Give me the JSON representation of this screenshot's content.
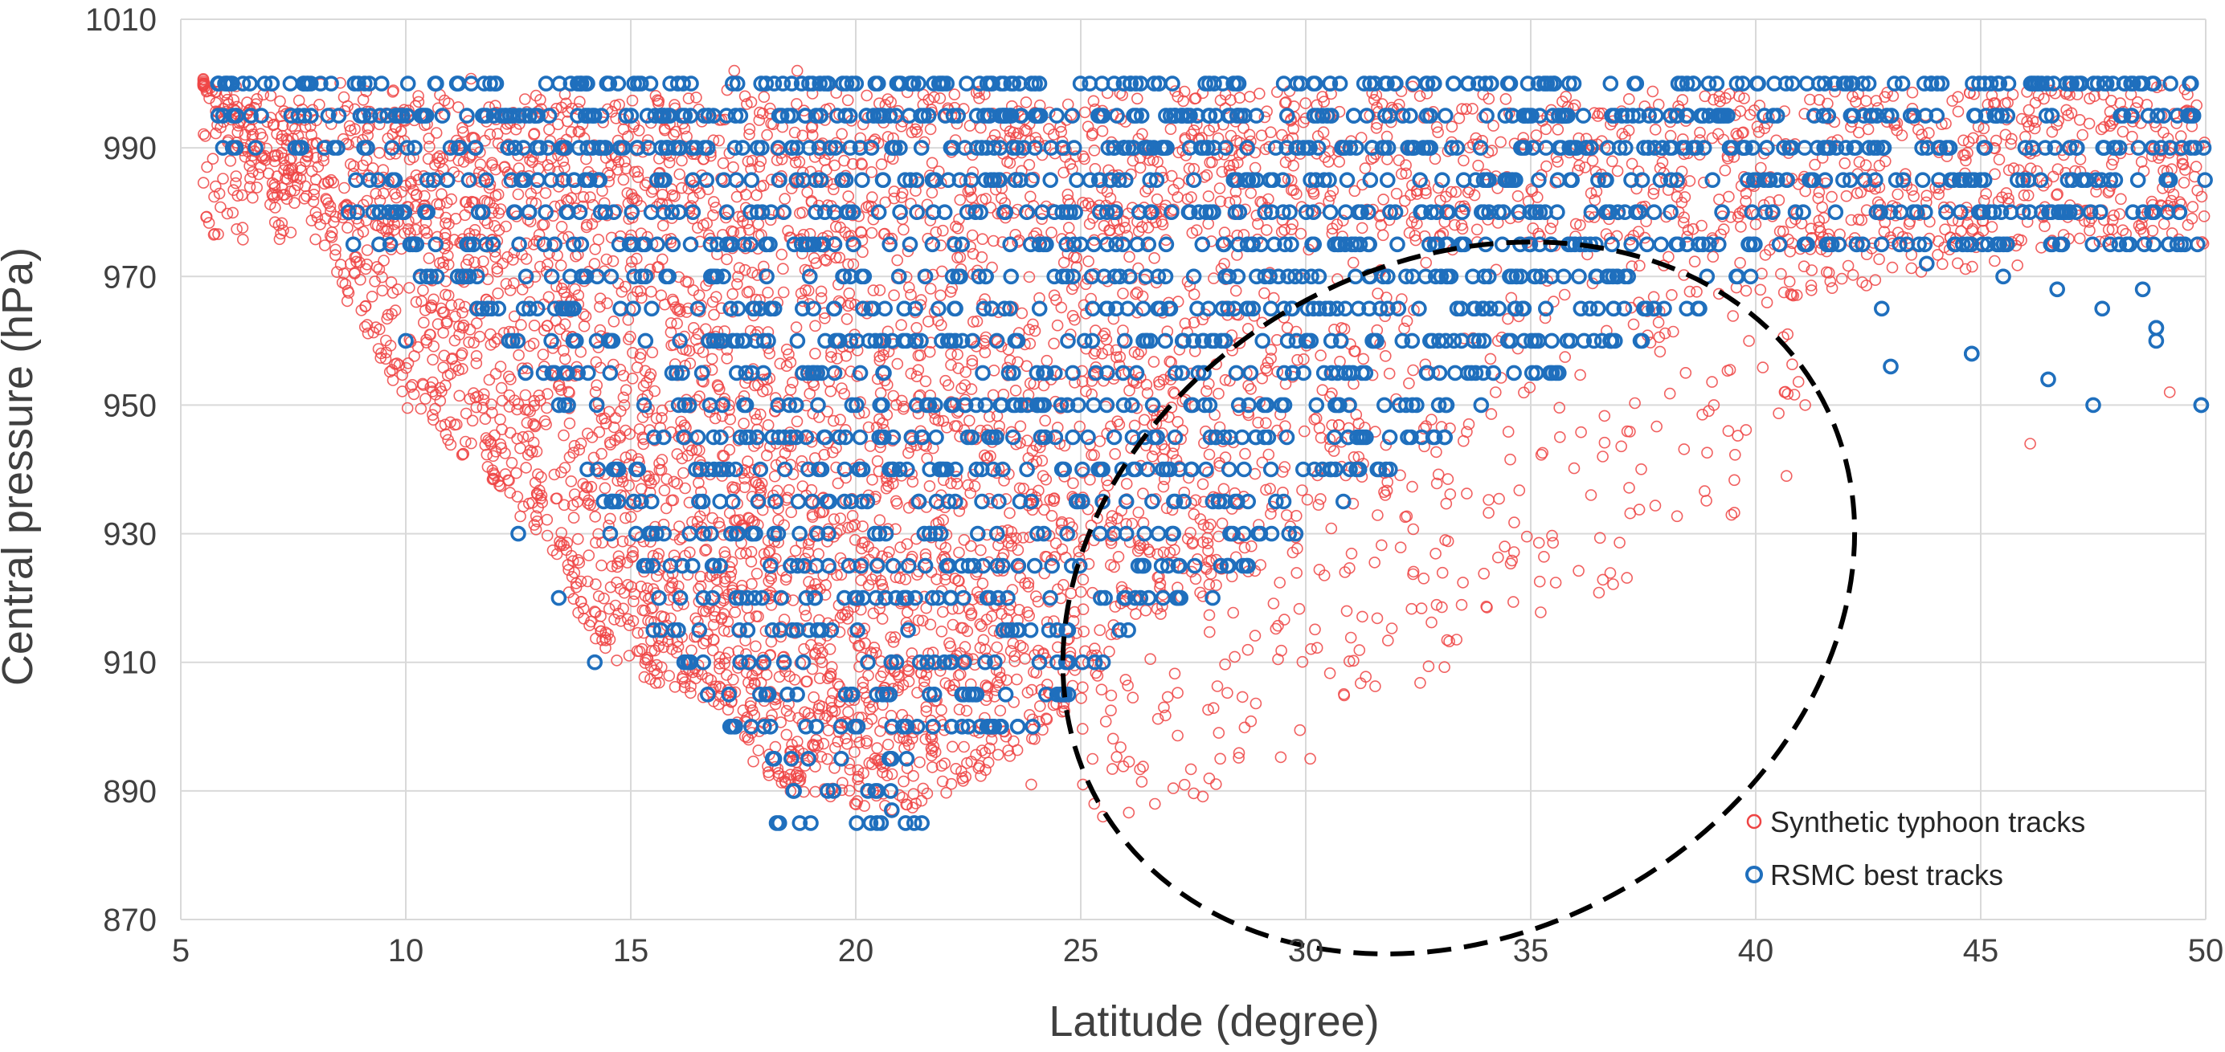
{
  "chart_data": {
    "type": "scatter",
    "title": "",
    "xlabel": "Latitude (degree)",
    "ylabel": "Central pressure (hPa)",
    "xlim": [
      5,
      50
    ],
    "ylim": [
      870,
      1010
    ],
    "xticks": [
      5,
      10,
      15,
      20,
      25,
      30,
      35,
      40,
      45,
      50
    ],
    "yticks": [
      870,
      890,
      910,
      930,
      950,
      970,
      990,
      1010
    ],
    "grid": true,
    "legend_position": "bottom-right",
    "series": [
      {
        "name": "Synthetic typhoon tracks",
        "color": "#ee4444",
        "marker": "circle-open",
        "description": "dense cloud of points spanning latitude 5.5-50, pressure ~888-1002, extending to an elongated low-pressure tail between latitude 25 and 41",
        "sample_points": [
          [
            25.3,
            888
          ],
          [
            23.9,
            891
          ],
          [
            28.1,
            895
          ],
          [
            30.1,
            895
          ],
          [
            33.1,
            929
          ],
          [
            36.6,
            942
          ],
          [
            41.1,
            950
          ],
          [
            46.1,
            944
          ],
          [
            49.2,
            952
          ],
          [
            17.3,
            1002
          ],
          [
            18.7,
            1002
          ]
        ]
      },
      {
        "name": "RSMC best tracks",
        "color": "#1f6fbd",
        "marker": "circle-open",
        "description": "points quantized to 5 hPa levels from 885 to 1000, spanning latitude 5.8-50",
        "sample_points": [
          [
            18.3,
            885
          ],
          [
            19.0,
            885
          ],
          [
            21.3,
            885
          ],
          [
            20.8,
            887
          ],
          [
            12.5,
            930
          ],
          [
            13.4,
            920
          ],
          [
            14.2,
            910
          ],
          [
            10.0,
            960
          ],
          [
            44.8,
            958
          ],
          [
            49.9,
            950
          ],
          [
            48.9,
            962
          ]
        ]
      }
    ],
    "annotation": {
      "type": "dashed-ellipse",
      "description": "highlights synthetic tracks at high latitude with low central pressure"
    }
  }
}
